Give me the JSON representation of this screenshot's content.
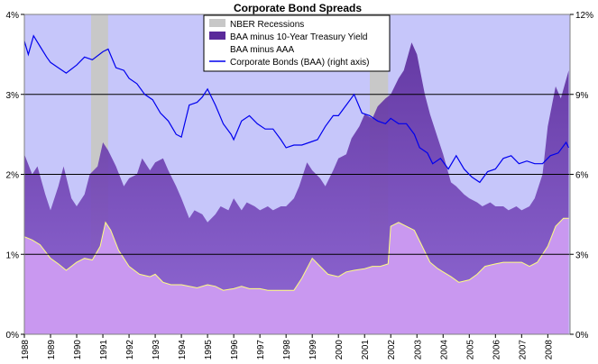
{
  "chart_data": {
    "type": "area",
    "title": "Corporate Bond Spreads",
    "xlabel": "",
    "ylabel": "",
    "x_ticks": [
      "1988",
      "1989",
      "1990",
      "1991",
      "1992",
      "1993",
      "1994",
      "1995",
      "1996",
      "1997",
      "1998",
      "1999",
      "2000",
      "2001",
      "2002",
      "2003",
      "2004",
      "2005",
      "2006",
      "2007",
      "2008"
    ],
    "xlim": [
      1988.0,
      2008.85
    ],
    "ylim": [
      0,
      4
    ],
    "y_ticks": [
      "0%",
      "1%",
      "2%",
      "3%",
      "4%"
    ],
    "y2lim": [
      0,
      12
    ],
    "y2_ticks": [
      "0%",
      "3%",
      "6%",
      "9%",
      "12%"
    ],
    "grid": "horizontal",
    "legend": "top-center",
    "colors": {
      "plot_bg": "#c6c6fa",
      "spread10y_fill": "#8a5fd0",
      "spread10y_dark": "#5a2a9a",
      "spreadAAA_fill": "#c998f0",
      "spreadAAA_line": "#ffff80",
      "recession": "#c8c8c8",
      "baa_line": "#0000ee"
    },
    "series": [
      {
        "name": "NBER Recessions",
        "kind": "shaded-period",
        "periods": [
          [
            1990.55,
            1991.2
          ],
          [
            2001.2,
            2001.9
          ]
        ]
      },
      {
        "name": "BAA minus 10-Year Treasury Yield",
        "axis": "left",
        "x": [
          1988.0,
          1988.3,
          1988.5,
          1988.8,
          1989.0,
          1989.3,
          1989.5,
          1989.8,
          1990.0,
          1990.3,
          1990.5,
          1990.8,
          1991.0,
          1991.2,
          1991.5,
          1991.8,
          1992.0,
          1992.3,
          1992.5,
          1992.8,
          1993.0,
          1993.3,
          1993.5,
          1993.8,
          1994.0,
          1994.3,
          1994.5,
          1994.8,
          1995.0,
          1995.3,
          1995.5,
          1995.8,
          1996.0,
          1996.3,
          1996.5,
          1996.8,
          1997.0,
          1997.3,
          1997.5,
          1997.8,
          1998.0,
          1998.3,
          1998.5,
          1998.8,
          1999.0,
          1999.3,
          1999.5,
          1999.8,
          2000.0,
          2000.3,
          2000.5,
          2000.8,
          2001.0,
          2001.3,
          2001.5,
          2001.8,
          2002.0,
          2002.3,
          2002.5,
          2002.8,
          2003.0,
          2003.3,
          2003.5,
          2003.8,
          2004.0,
          2004.3,
          2004.5,
          2004.8,
          2005.0,
          2005.3,
          2005.5,
          2005.8,
          2006.0,
          2006.3,
          2006.5,
          2006.8,
          2007.0,
          2007.3,
          2007.5,
          2007.8,
          2008.0,
          2008.3,
          2008.5,
          2008.8
        ],
        "values": [
          2.25,
          2.0,
          2.1,
          1.75,
          1.55,
          1.85,
          2.1,
          1.7,
          1.6,
          1.75,
          2.0,
          2.1,
          2.4,
          2.3,
          2.1,
          1.85,
          1.95,
          2.0,
          2.2,
          2.05,
          2.15,
          2.2,
          2.05,
          1.85,
          1.7,
          1.45,
          1.55,
          1.5,
          1.4,
          1.5,
          1.6,
          1.55,
          1.7,
          1.55,
          1.65,
          1.6,
          1.55,
          1.6,
          1.55,
          1.6,
          1.6,
          1.7,
          1.85,
          2.15,
          2.05,
          1.95,
          1.85,
          2.05,
          2.2,
          2.25,
          2.45,
          2.6,
          2.75,
          2.7,
          2.85,
          2.95,
          3.0,
          3.2,
          3.3,
          3.65,
          3.5,
          3.0,
          2.75,
          2.45,
          2.25,
          1.9,
          1.85,
          1.75,
          1.7,
          1.65,
          1.6,
          1.65,
          1.6,
          1.6,
          1.55,
          1.6,
          1.55,
          1.6,
          1.7,
          2.0,
          2.6,
          3.1,
          2.95,
          3.3
        ]
      },
      {
        "name": "BAA minus AAA",
        "axis": "left",
        "x": [
          1988.0,
          1988.3,
          1988.6,
          1989.0,
          1989.3,
          1989.6,
          1990.0,
          1990.3,
          1990.6,
          1990.9,
          1991.1,
          1991.3,
          1991.6,
          1992.0,
          1992.4,
          1992.8,
          1993.0,
          1993.3,
          1993.6,
          1994.0,
          1994.3,
          1994.6,
          1995.0,
          1995.3,
          1995.6,
          1996.0,
          1996.3,
          1996.6,
          1997.0,
          1997.3,
          1997.6,
          1998.0,
          1998.3,
          1998.6,
          1999.0,
          1999.3,
          1999.6,
          2000.0,
          2000.3,
          2000.6,
          2001.0,
          2001.3,
          2001.6,
          2001.9,
          2002.0,
          2002.3,
          2002.6,
          2002.9,
          2003.2,
          2003.5,
          2003.8,
          2004.0,
          2004.3,
          2004.6,
          2005.0,
          2005.3,
          2005.6,
          2006.0,
          2006.3,
          2006.6,
          2007.0,
          2007.3,
          2007.6,
          2008.0,
          2008.3,
          2008.6,
          2008.8
        ],
        "values": [
          1.22,
          1.18,
          1.12,
          0.95,
          0.88,
          0.8,
          0.9,
          0.95,
          0.93,
          1.1,
          1.4,
          1.3,
          1.05,
          0.85,
          0.75,
          0.72,
          0.75,
          0.65,
          0.62,
          0.62,
          0.6,
          0.58,
          0.62,
          0.6,
          0.55,
          0.57,
          0.6,
          0.57,
          0.57,
          0.55,
          0.55,
          0.55,
          0.55,
          0.7,
          0.95,
          0.85,
          0.75,
          0.72,
          0.78,
          0.8,
          0.82,
          0.85,
          0.85,
          0.88,
          1.35,
          1.4,
          1.35,
          1.3,
          1.1,
          0.9,
          0.82,
          0.78,
          0.72,
          0.65,
          0.68,
          0.75,
          0.85,
          0.88,
          0.9,
          0.9,
          0.9,
          0.85,
          0.9,
          1.1,
          1.35,
          1.45,
          1.45
        ]
      },
      {
        "name": "Corporate Bonds (BAA) (right axis)",
        "axis": "right",
        "x": [
          1988.0,
          1988.15,
          1988.35,
          1988.6,
          1988.85,
          1989.0,
          1989.3,
          1989.6,
          1990.0,
          1990.3,
          1990.6,
          1991.0,
          1991.2,
          1991.5,
          1991.8,
          1992.0,
          1992.3,
          1992.6,
          1992.9,
          1993.2,
          1993.5,
          1993.8,
          1994.0,
          1994.3,
          1994.6,
          1994.8,
          1995.0,
          1995.3,
          1995.6,
          1995.9,
          1996.0,
          1996.3,
          1996.6,
          1996.9,
          1997.2,
          1997.5,
          1997.8,
          1998.0,
          1998.3,
          1998.6,
          1998.9,
          1999.2,
          1999.5,
          1999.8,
          2000.0,
          2000.3,
          2000.6,
          2000.9,
          2001.2,
          2001.5,
          2001.8,
          2002.0,
          2002.3,
          2002.6,
          2002.9,
          2003.1,
          2003.4,
          2003.6,
          2003.9,
          2004.2,
          2004.5,
          2004.8,
          2005.1,
          2005.4,
          2005.7,
          2006.0,
          2006.3,
          2006.6,
          2006.9,
          2007.2,
          2007.5,
          2007.8,
          2008.1,
          2008.4,
          2008.7,
          2008.8
        ],
        "values": [
          11.0,
          10.5,
          11.2,
          10.8,
          10.4,
          10.2,
          10.0,
          9.8,
          10.1,
          10.4,
          10.3,
          10.6,
          10.7,
          10.0,
          9.9,
          9.6,
          9.4,
          9.0,
          8.8,
          8.3,
          8.0,
          7.5,
          7.4,
          8.6,
          8.7,
          8.9,
          9.2,
          8.6,
          7.9,
          7.5,
          7.3,
          8.0,
          8.2,
          7.9,
          7.7,
          7.7,
          7.3,
          7.0,
          7.1,
          7.1,
          7.2,
          7.3,
          7.8,
          8.2,
          8.2,
          8.6,
          9.0,
          8.3,
          8.2,
          8.0,
          7.9,
          8.1,
          7.9,
          7.9,
          7.5,
          7.0,
          6.8,
          6.4,
          6.6,
          6.2,
          6.7,
          6.2,
          5.9,
          5.7,
          6.1,
          6.2,
          6.6,
          6.7,
          6.4,
          6.5,
          6.4,
          6.4,
          6.7,
          6.8,
          7.2,
          7.0
        ]
      }
    ]
  }
}
